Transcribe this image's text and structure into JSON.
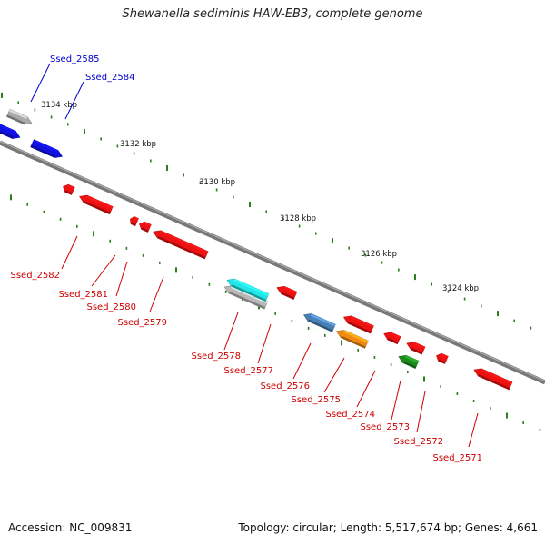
{
  "title": "Shewanella sediminis HAW-EB3, complete genome",
  "footer": {
    "accession": "Accession: NC_009831",
    "topology": "Topology: circular; Length: 5,517,674 bp; Genes: 4,661"
  },
  "colors": {
    "backbone": "#777777",
    "tick": "#2e7d1c",
    "label_red": "#cc0000",
    "label_blue": "#0000cc"
  },
  "scale_labels": [
    "3134 kbp",
    "3132 kbp",
    "3130 kbp",
    "3128 kbp",
    "3126 kbp",
    "3124 kbp"
  ],
  "genes_forward": [
    {
      "label": "Ssed_2585",
      "color": "#aaaaaa"
    },
    {
      "label": "Ssed_2584",
      "color": "#1010e0"
    }
  ],
  "genes_reverse": [
    {
      "label": "Ssed_2582",
      "color": "#ee1111"
    },
    {
      "label": "Ssed_2581",
      "color": "#ee1111"
    },
    {
      "label": "Ssed_2580",
      "color": "#ee1111"
    },
    {
      "label": "Ssed_2579",
      "color": "#ee1111"
    },
    {
      "label": "Ssed_2578",
      "color": "#22e5e5"
    },
    {
      "label": "Ssed_2577",
      "color": "#ee1111"
    },
    {
      "label": "Ssed_2576",
      "color": "#4a7fb5"
    },
    {
      "label": "Ssed_2575",
      "color": "#f08a10"
    },
    {
      "label": "Ssed_2574",
      "color": "#ee1111"
    },
    {
      "label": "Ssed_2573",
      "color": "#1e8a1e"
    },
    {
      "label": "Ssed_2572",
      "color": "#ee1111"
    },
    {
      "label": "Ssed_2571",
      "color": "#ee1111"
    }
  ]
}
